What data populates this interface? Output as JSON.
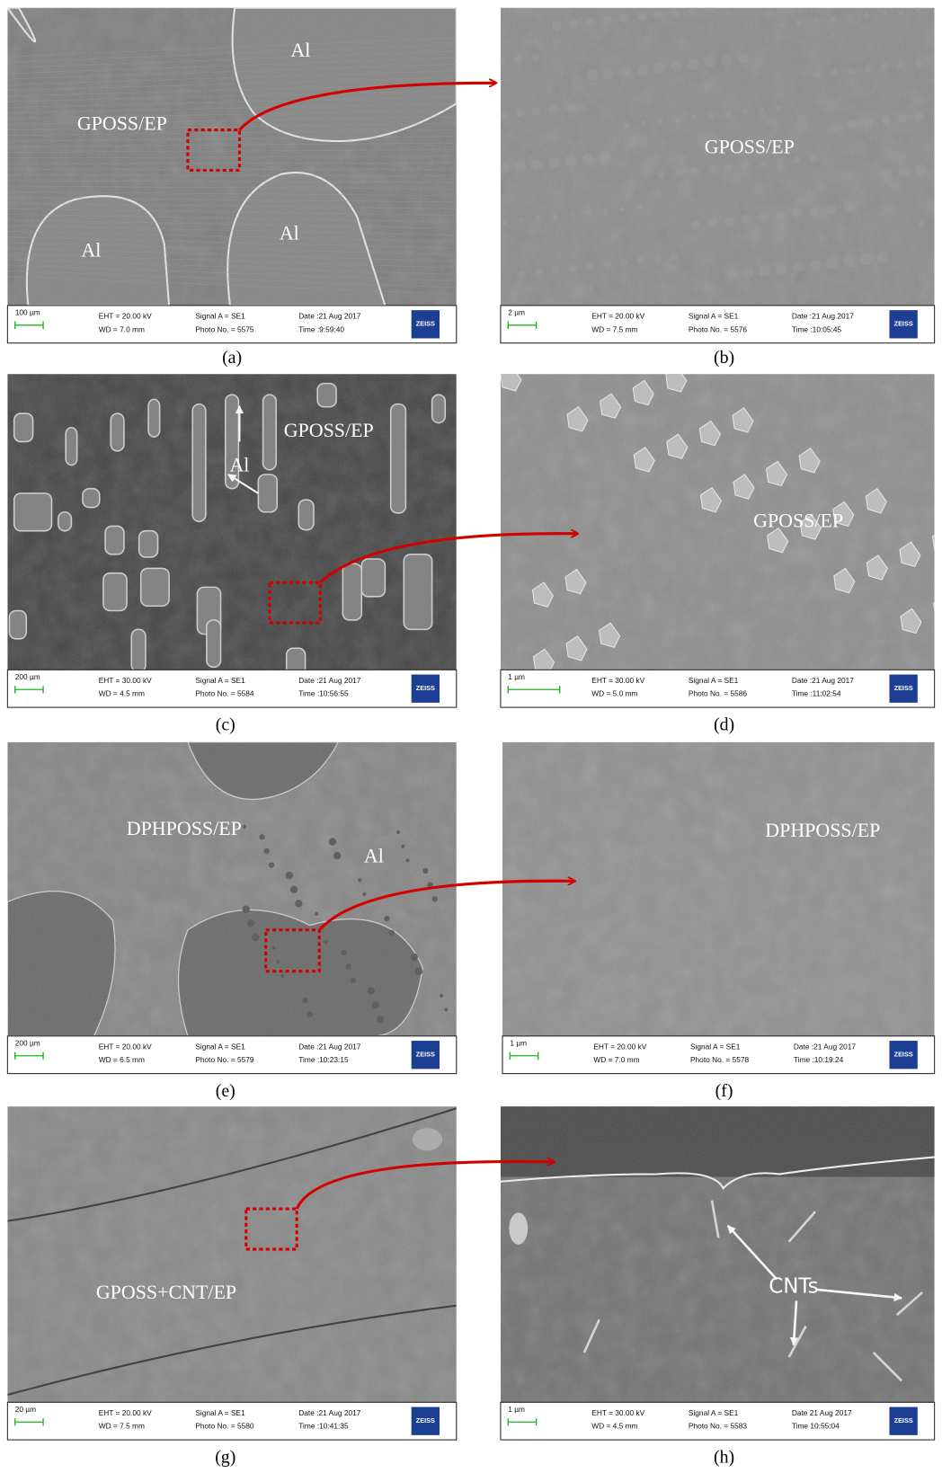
{
  "panels": [
    {
      "caption": "(a)",
      "labels": [
        "Al",
        "GPOSS/EP",
        "Al",
        "Al"
      ],
      "info": {
        "scale": "100 µm",
        "eht": "EHT = 20.00 kV",
        "wd": "WD =  7.0 mm",
        "signal": "Signal A = SE1",
        "photo": "Photo No. = 5575",
        "date": "Date :21 Aug 2017",
        "time": "Time :9:59:40",
        "logo": "ZEISS"
      }
    },
    {
      "caption": "(b)",
      "labels": [
        "GPOSS/EP"
      ],
      "info": {
        "scale": "2 µm",
        "eht": "EHT = 20.00 kV",
        "wd": "WD =  7.5 mm",
        "signal": "Signal A = SE1",
        "photo": "Photo No. = 5576",
        "date": "Date :21 Aug 2017",
        "time": "Time :10:05:45",
        "logo": "ZEISS"
      }
    },
    {
      "caption": "(c)",
      "labels": [
        "GPOSS/EP",
        "Al"
      ],
      "info": {
        "scale": "200 µm",
        "eht": "EHT = 30.00 kV",
        "wd": "WD =  4.5 mm",
        "signal": "Signal A = SE1",
        "photo": "Photo No. = 5584",
        "date": "Date :21 Aug 2017",
        "time": "Time :10:56:55",
        "logo": "ZEISS"
      }
    },
    {
      "caption": "(d)",
      "labels": [
        "GPOSS/EP"
      ],
      "info": {
        "scale": "1 µm",
        "eht": "EHT = 30.00 kV",
        "wd": "WD =  5.0 mm",
        "signal": "Signal A = SE1",
        "photo": "Photo No. = 5586",
        "date": "Date :21 Aug 2017",
        "time": "Time :11:02:54",
        "logo": "ZEISS"
      }
    },
    {
      "caption": "(e)",
      "labels": [
        "DPHPOSS/EP",
        "Al"
      ],
      "info": {
        "scale": "200 µm",
        "eht": "EHT = 20.00 kV",
        "wd": "WD =  6.5 mm",
        "signal": "Signal A = SE1",
        "photo": "Photo No. = 5579",
        "date": "Date :21 Aug 2017",
        "time": "Time :10:23:15",
        "logo": "ZEISS"
      }
    },
    {
      "caption": "(f)",
      "labels": [
        "DPHPOSS/EP"
      ],
      "info": {
        "scale": "1 µm",
        "eht": "EHT = 20.00 kV",
        "wd": "WD =  7.0 mm",
        "signal": "Signal A = SE1",
        "photo": "Photo No. = 5578",
        "date": "Date :21 Aug 2017",
        "time": "Time :10:19:24",
        "logo": "ZEISS"
      }
    },
    {
      "caption": "(g)",
      "labels": [
        "GPOSS+CNT/EP"
      ],
      "info": {
        "scale": "20 µm",
        "eht": "EHT = 20.00 kV",
        "wd": "WD =  7.5 mm",
        "signal": "Signal A = SE1",
        "photo": "Photo No. = 5580",
        "date": "Date :21 Aug 2017",
        "time": "Time :10:41:35",
        "logo": "ZEISS"
      }
    },
    {
      "caption": "(h)",
      "labels": [
        "CNTs"
      ],
      "info": {
        "scale": "1 µm",
        "eht": "EHT = 30.00 kV",
        "wd": "WD = 4.5 mm",
        "signal": "Signal A = SE1",
        "photo": "Photo No. = 5583",
        "date": "Date 21 Aug 2017",
        "time": "Time 10:55:04",
        "logo": "ZEISS"
      }
    }
  ]
}
